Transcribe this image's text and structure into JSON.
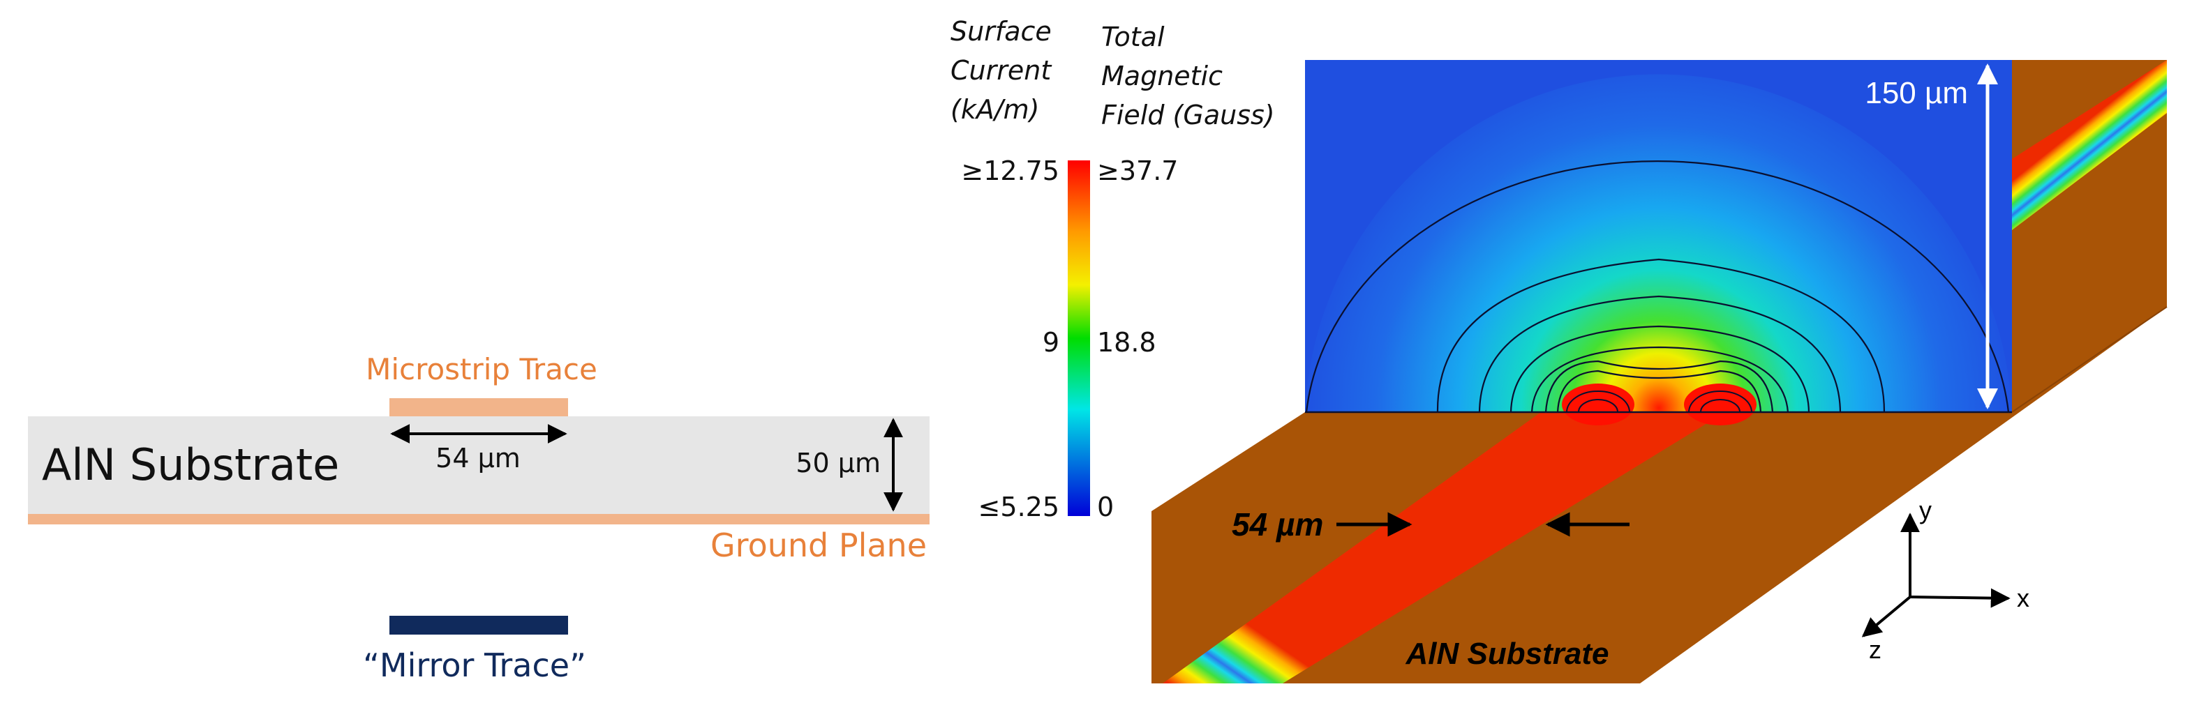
{
  "cross_section": {
    "substrate_label": "AlN Substrate",
    "trace_label": "Microstrip Trace",
    "width_label": "54 µm",
    "thickness_label": "50 µm",
    "ground_label": "Ground Plane",
    "mirror_label": "“Mirror Trace”",
    "colors": {
      "substrate": "#e6e6e6",
      "copper": "#f2b48a",
      "mirror": "#102a5c",
      "label_orange": "#e8813a"
    }
  },
  "legend": {
    "current_title": [
      "Surface",
      "Current",
      "(kA/m)"
    ],
    "field_title": [
      "Total",
      "Magnetic",
      "Field (Gauss)"
    ],
    "current_ticks": [
      "≥12.75",
      "9",
      "≤5.25"
    ],
    "field_ticks": [
      "≥37.7",
      "18.8",
      "0"
    ]
  },
  "simulation": {
    "height_label": "150 µm",
    "width_label": "54 µm",
    "substrate_label": "AlN Substrate",
    "axes": {
      "y": "y",
      "x": "x",
      "z": "z"
    },
    "colors": {
      "field_background": "#1f4fe0",
      "substrate": "#a95406"
    }
  }
}
